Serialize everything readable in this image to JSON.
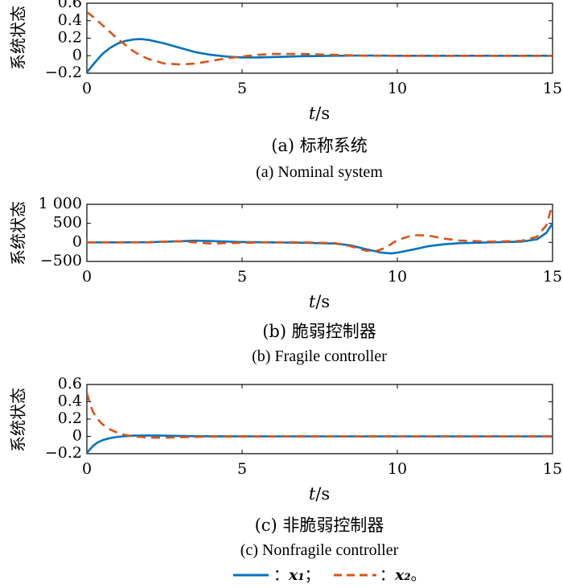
{
  "colors": {
    "x1": "#0072BD",
    "x2": "#D95319",
    "axis": "#000000"
  },
  "xlabel": {
    "t": "t",
    "slash": "/",
    "unit": "s"
  },
  "legend": [
    {
      "label": "x₁",
      "sep": "：",
      "end": "；"
    },
    {
      "label": "x₂",
      "sep": "：",
      "end": "。"
    }
  ],
  "chart_data": [
    {
      "type": "line",
      "caption_zh": "(a) 标称系统",
      "caption_en": "(a) Nominal system",
      "ylabel": "系统状态",
      "xlim": [
        0,
        15
      ],
      "ylim": [
        -0.2,
        0.6
      ],
      "xticks": [
        0,
        5,
        10,
        15
      ],
      "yticks": [
        -0.2,
        0,
        0.2,
        0.4,
        0.6
      ],
      "yticklabels": [
        "−0.2",
        "0",
        "0.2",
        "0.4",
        "0.6"
      ],
      "series": [
        {
          "name": "x1",
          "style": "solid",
          "x": [
            0,
            0.25,
            0.5,
            0.75,
            1,
            1.25,
            1.5,
            1.75,
            2,
            2.5,
            3,
            3.5,
            4,
            4.5,
            5,
            5.5,
            6,
            7,
            8,
            9,
            10,
            12,
            15
          ],
          "y": [
            -0.19,
            -0.08,
            0.02,
            0.09,
            0.14,
            0.17,
            0.185,
            0.19,
            0.18,
            0.14,
            0.09,
            0.04,
            0.01,
            -0.01,
            -0.02,
            -0.02,
            -0.015,
            -0.005,
            0,
            0.002,
            0,
            0,
            0
          ]
        },
        {
          "name": "x2",
          "style": "dashed",
          "x": [
            0,
            0.25,
            0.5,
            0.75,
            1,
            1.25,
            1.5,
            1.75,
            2,
            2.5,
            3,
            3.5,
            4,
            4.5,
            5,
            5.5,
            6,
            7,
            8,
            9,
            10,
            12,
            15
          ],
          "y": [
            0.5,
            0.43,
            0.35,
            0.27,
            0.19,
            0.12,
            0.05,
            0,
            -0.04,
            -0.09,
            -0.1,
            -0.09,
            -0.06,
            -0.03,
            -0.01,
            0.01,
            0.02,
            0.02,
            0.01,
            0,
            0,
            0,
            0
          ]
        }
      ]
    },
    {
      "type": "line",
      "caption_zh": "(b) 脆弱控制器",
      "caption_en": "(b) Fragile controller",
      "ylabel": "系统状态",
      "xlim": [
        0,
        15
      ],
      "ylim": [
        -500,
        1000
      ],
      "xticks": [
        0,
        5,
        10,
        15
      ],
      "yticks": [
        -500,
        0,
        500,
        1000
      ],
      "yticklabels": [
        "−500",
        "0",
        "500",
        "1 000"
      ],
      "series": [
        {
          "name": "x1",
          "style": "solid",
          "x": [
            0,
            1,
            2,
            3,
            3.5,
            4,
            5,
            6,
            7,
            8,
            8.5,
            9,
            9.5,
            9.8,
            10,
            10.5,
            11,
            11.5,
            12,
            13,
            14,
            14.5,
            14.8,
            15
          ],
          "y": [
            0,
            0,
            5,
            30,
            45,
            35,
            10,
            0,
            -10,
            -30,
            -80,
            -180,
            -270,
            -290,
            -270,
            -190,
            -100,
            -50,
            -20,
            0,
            20,
            80,
            250,
            500
          ]
        },
        {
          "name": "x2",
          "style": "dashed",
          "x": [
            0,
            1,
            2,
            2.5,
            3,
            3.5,
            4,
            5,
            6,
            7,
            8,
            8.5,
            9,
            9.3,
            9.6,
            10,
            10.5,
            11,
            11.5,
            12,
            13,
            14,
            14.5,
            14.8,
            15
          ],
          "y": [
            0,
            0,
            0,
            20,
            30,
            0,
            -30,
            -10,
            0,
            0,
            -20,
            -100,
            -220,
            -230,
            -150,
            60,
            190,
            180,
            100,
            50,
            20,
            40,
            150,
            450,
            1000
          ]
        }
      ]
    },
    {
      "type": "line",
      "caption_zh": "(c) 非脆弱控制器",
      "caption_en": "(c) Nonfragile controller",
      "ylabel": "系统状态",
      "xlim": [
        0,
        15
      ],
      "ylim": [
        -0.2,
        0.6
      ],
      "xticks": [
        0,
        5,
        10,
        15
      ],
      "yticks": [
        -0.2,
        0,
        0.2,
        0.4,
        0.6
      ],
      "yticklabels": [
        "−0.2",
        "0",
        "0.2",
        "0.4",
        "0.6"
      ],
      "series": [
        {
          "name": "x1",
          "style": "solid",
          "x": [
            0,
            0.1,
            0.2,
            0.35,
            0.5,
            0.75,
            1,
            1.25,
            1.5,
            2,
            2.5,
            3,
            4,
            6,
            10,
            15
          ],
          "y": [
            -0.19,
            -0.15,
            -0.11,
            -0.07,
            -0.045,
            -0.02,
            -0.005,
            0.003,
            0.008,
            0.01,
            0.008,
            0.004,
            0.001,
            0,
            0,
            0
          ]
        },
        {
          "name": "x2",
          "style": "dashed",
          "x": [
            0,
            0.1,
            0.2,
            0.35,
            0.5,
            0.75,
            1,
            1.25,
            1.5,
            2,
            2.5,
            3,
            4,
            6,
            10,
            15
          ],
          "y": [
            0.5,
            0.38,
            0.28,
            0.2,
            0.14,
            0.08,
            0.04,
            0.015,
            0,
            -0.015,
            -0.015,
            -0.01,
            -0.003,
            0,
            0,
            0
          ]
        }
      ]
    }
  ]
}
